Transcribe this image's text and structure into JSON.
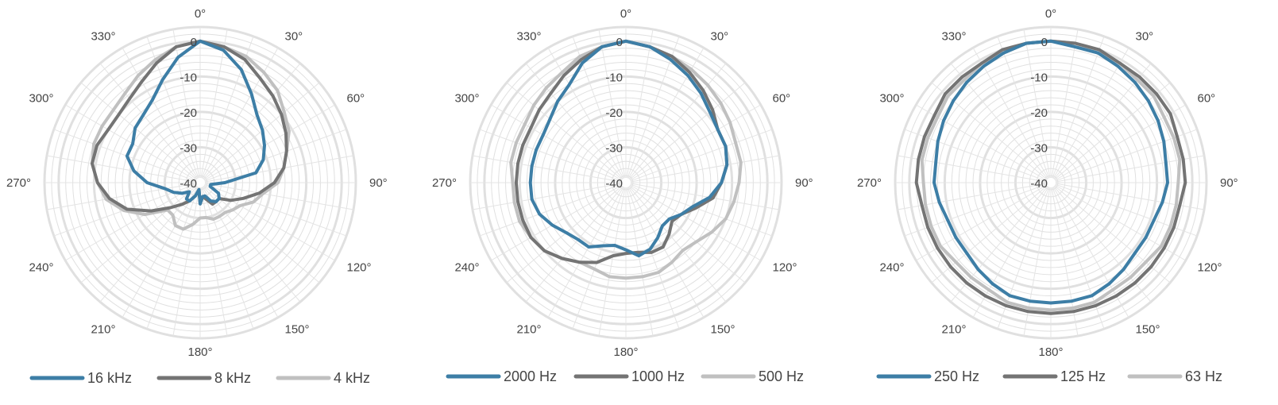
{
  "chart_data": [
    {
      "type": "polar-line",
      "r_ticks": [
        "0",
        "-10",
        "-20",
        "-30",
        "-40"
      ],
      "r_range": [
        -40,
        0
      ],
      "angle_ticks": [
        "0°",
        "30°",
        "60°",
        "90°",
        "120°",
        "150°",
        "180°",
        "210°",
        "240°",
        "270°",
        "300°",
        "330°"
      ],
      "grid": true,
      "legend_position": "bottom",
      "series": [
        {
          "name": "16 kHz",
          "color": "#3d7ea6",
          "angles": [
            0,
            10,
            20,
            30,
            40,
            50,
            60,
            70,
            80,
            90,
            100,
            110,
            120,
            130,
            140,
            150,
            160,
            170,
            180,
            190,
            200,
            210,
            220,
            230,
            240,
            250,
            260,
            270,
            280,
            290,
            300,
            310,
            320,
            330,
            340,
            350
          ],
          "values": [
            0,
            -2,
            -6,
            -11,
            -15,
            -17,
            -19,
            -21,
            -24,
            -33,
            -37,
            -37,
            -34,
            -33,
            -33,
            -34,
            -36,
            -36,
            -34,
            -38,
            -36,
            -34,
            -34,
            -36,
            -34,
            -32,
            -30,
            -25,
            -21,
            -18,
            -18,
            -16,
            -15,
            -13,
            -9,
            -4
          ]
        },
        {
          "name": "8 kHz",
          "color": "#747474",
          "angles": [
            0,
            10,
            20,
            30,
            40,
            50,
            60,
            70,
            80,
            90,
            100,
            110,
            120,
            130,
            140,
            150,
            160,
            170,
            180,
            190,
            200,
            210,
            220,
            230,
            240,
            250,
            260,
            270,
            280,
            290,
            300,
            310,
            320,
            330,
            340,
            350
          ],
          "values": [
            0,
            -1,
            -3,
            -6,
            -8,
            -10,
            -12,
            -14,
            -16,
            -19,
            -23,
            -27,
            -30,
            -33,
            -33,
            -33,
            -35,
            -36,
            -34,
            -38,
            -36,
            -34,
            -32,
            -29,
            -24,
            -18,
            -14,
            -11,
            -9,
            -9,
            -10,
            -10,
            -9,
            -7,
            -4,
            -1
          ]
        },
        {
          "name": "4 kHz",
          "color": "#c0c0c0",
          "angles": [
            0,
            10,
            20,
            30,
            40,
            50,
            60,
            70,
            80,
            90,
            100,
            110,
            120,
            130,
            140,
            150,
            160,
            170,
            180,
            190,
            200,
            210,
            220,
            230,
            240,
            250,
            260,
            270,
            280,
            290,
            300,
            310,
            320,
            330,
            340,
            350
          ],
          "values": [
            0,
            -1,
            -2,
            -4,
            -6,
            -9,
            -11,
            -14,
            -16,
            -18,
            -22,
            -24,
            -27,
            -28,
            -29,
            -29,
            -29,
            -30,
            -30,
            -28,
            -26,
            -26,
            -28,
            -28,
            -22,
            -17,
            -13,
            -11,
            -9,
            -8,
            -8,
            -8,
            -7,
            -5,
            -3,
            -1
          ]
        }
      ]
    },
    {
      "type": "polar-line",
      "r_ticks": [
        "0",
        "-10",
        "-20",
        "-30",
        "-40"
      ],
      "r_range": [
        -40,
        0
      ],
      "angle_ticks": [
        "0°",
        "30°",
        "60°",
        "90°",
        "120°",
        "150°",
        "180°",
        "210°",
        "240°",
        "270°",
        "300°",
        "330°"
      ],
      "grid": true,
      "legend_position": "bottom",
      "series": [
        {
          "name": "2000 Hz",
          "color": "#3d7ea6",
          "angles": [
            0,
            10,
            20,
            30,
            40,
            50,
            60,
            70,
            80,
            90,
            100,
            110,
            120,
            130,
            140,
            150,
            160,
            170,
            180,
            190,
            200,
            210,
            220,
            230,
            240,
            250,
            260,
            270,
            280,
            290,
            300,
            310,
            320,
            330,
            340,
            350
          ],
          "values": [
            0,
            -1,
            -3,
            -5,
            -7,
            -9,
            -10,
            -10,
            -11,
            -13,
            -16,
            -20,
            -22,
            -24,
            -24,
            -22,
            -20,
            -19,
            -21,
            -22,
            -21,
            -19,
            -19,
            -18,
            -16,
            -14,
            -13,
            -13,
            -13,
            -13,
            -13,
            -12,
            -10,
            -8,
            -4,
            -1
          ]
        },
        {
          "name": "1000 Hz",
          "color": "#747474",
          "angles": [
            0,
            10,
            20,
            30,
            40,
            50,
            60,
            70,
            80,
            90,
            100,
            110,
            120,
            130,
            140,
            150,
            160,
            170,
            180,
            190,
            200,
            210,
            220,
            230,
            240,
            250,
            260,
            270,
            280,
            290,
            300,
            310,
            320,
            330,
            340,
            350
          ],
          "values": [
            0,
            -1,
            -2,
            -4,
            -6,
            -8,
            -10,
            -10,
            -11,
            -13,
            -15,
            -19,
            -22,
            -23,
            -21,
            -19,
            -19,
            -20,
            -20,
            -19,
            -16,
            -14,
            -12,
            -10,
            -9,
            -9,
            -9,
            -9,
            -9,
            -9,
            -9,
            -8,
            -7,
            -5,
            -3,
            -1
          ]
        },
        {
          "name": "500 Hz",
          "color": "#c0c0c0",
          "angles": [
            0,
            10,
            20,
            30,
            40,
            50,
            60,
            70,
            80,
            90,
            100,
            110,
            120,
            130,
            140,
            150,
            160,
            170,
            180,
            190,
            200,
            210,
            220,
            230,
            240,
            250,
            260,
            270,
            280,
            290,
            300,
            310,
            320,
            330,
            340,
            350
          ],
          "values": [
            0,
            -1,
            -2,
            -3,
            -4,
            -5,
            -6,
            -7,
            -7,
            -8,
            -9,
            -10,
            -12,
            -14,
            -15,
            -14,
            -13,
            -13,
            -13,
            -13,
            -14,
            -14,
            -12,
            -10,
            -9,
            -8,
            -8,
            -8,
            -7,
            -7,
            -7,
            -6,
            -5,
            -4,
            -2,
            -1
          ]
        }
      ]
    },
    {
      "type": "polar-line",
      "r_ticks": [
        "0",
        "-10",
        "-20",
        "-30",
        "-40"
      ],
      "r_range": [
        -40,
        0
      ],
      "angle_ticks": [
        "0°",
        "30°",
        "60°",
        "90°",
        "120°",
        "150°",
        "180°",
        "210°",
        "240°",
        "270°",
        "300°",
        "330°"
      ],
      "grid": true,
      "legend_position": "bottom",
      "series": [
        {
          "name": "250 Hz",
          "color": "#3d7ea6",
          "angles": [
            0,
            10,
            20,
            30,
            40,
            50,
            60,
            70,
            80,
            90,
            100,
            110,
            120,
            130,
            140,
            150,
            160,
            170,
            180,
            190,
            200,
            210,
            220,
            230,
            240,
            250,
            260,
            270,
            280,
            290,
            300,
            310,
            320,
            330,
            340,
            350
          ],
          "values": [
            0,
            -1,
            -1,
            -2,
            -3,
            -4,
            -5,
            -6,
            -7,
            -7,
            -8,
            -9,
            -9,
            -9,
            -8,
            -7,
            -6,
            -6,
            -6,
            -6,
            -6,
            -7,
            -8,
            -9,
            -9,
            -9,
            -8,
            -7,
            -7,
            -6,
            -5,
            -4,
            -3,
            -2,
            -1,
            0
          ]
        },
        {
          "name": "125 Hz",
          "color": "#747474",
          "angles": [
            0,
            10,
            20,
            30,
            40,
            50,
            60,
            70,
            80,
            90,
            100,
            110,
            120,
            130,
            140,
            150,
            160,
            170,
            180,
            190,
            200,
            210,
            220,
            230,
            240,
            250,
            260,
            270,
            280,
            290,
            300,
            310,
            320,
            330,
            340,
            350
          ],
          "values": [
            0,
            0,
            0,
            -1,
            -1,
            -1,
            -1,
            -2,
            -2,
            -2,
            -3,
            -3,
            -3,
            -3,
            -3,
            -3,
            -3,
            -3,
            -3,
            -3,
            -3,
            -3,
            -3,
            -3,
            -3,
            -3,
            -3,
            -2,
            -2,
            -2,
            -2,
            -1,
            -1,
            -1,
            0,
            0
          ]
        },
        {
          "name": "63 Hz",
          "color": "#c0c0c0",
          "angles": [
            0,
            10,
            20,
            30,
            40,
            50,
            60,
            70,
            80,
            90,
            100,
            110,
            120,
            130,
            140,
            150,
            160,
            170,
            180,
            190,
            200,
            210,
            220,
            230,
            240,
            250,
            260,
            270,
            280,
            290,
            300,
            310,
            320,
            330,
            340,
            350
          ],
          "values": [
            0,
            0,
            -1,
            -1,
            -2,
            -2,
            -3,
            -3,
            -3,
            -4,
            -4,
            -4,
            -4,
            -5,
            -5,
            -5,
            -4,
            -4,
            -4,
            -4,
            -4,
            -5,
            -5,
            -5,
            -4,
            -4,
            -4,
            -4,
            -3,
            -3,
            -3,
            -2,
            -2,
            -1,
            -1,
            0
          ]
        }
      ]
    }
  ]
}
